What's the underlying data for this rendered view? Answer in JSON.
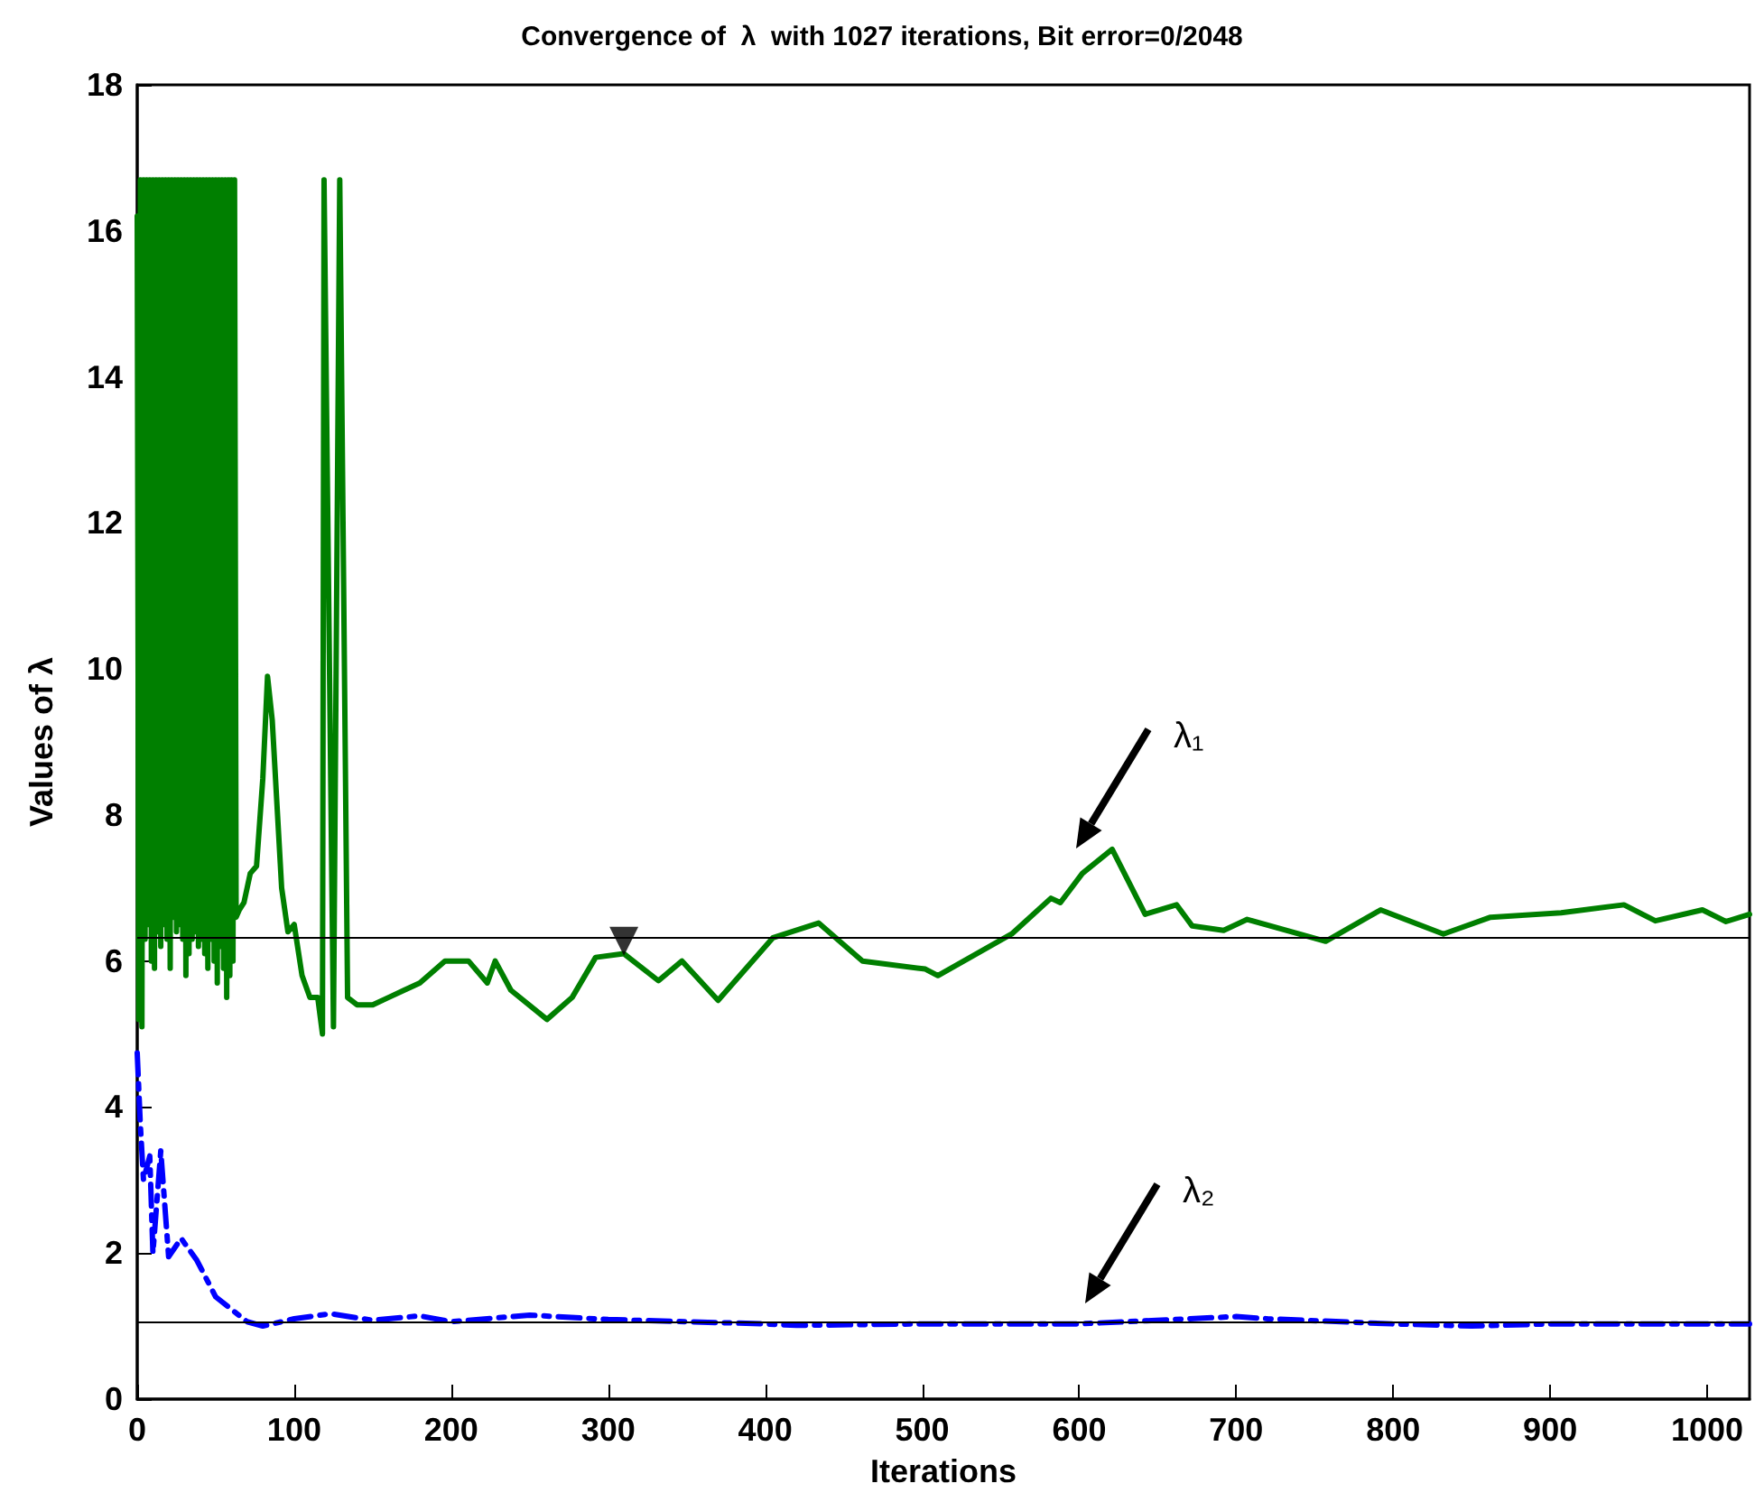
{
  "chart_data": {
    "type": "line",
    "title": "Convergence of  λ  with 1027 iterations, Bit error=0/2048",
    "xlabel": "Iterations",
    "ylabel": "Values of λ",
    "annotations": [
      "λ₁",
      "λ₂"
    ],
    "series": [
      {
        "color": "#007f00",
        "line_style": "solid",
        "marker": "none",
        "x": [
          0,
          1,
          2,
          3,
          4,
          5,
          6,
          7,
          8,
          9,
          10,
          11,
          12,
          13,
          14,
          15,
          16,
          17,
          18,
          19,
          20,
          21,
          22,
          23,
          24,
          25,
          26,
          27,
          28,
          29,
          30,
          31,
          32,
          33,
          34,
          35,
          36,
          37,
          38,
          39,
          40,
          41,
          42,
          43,
          44,
          45,
          46,
          47,
          48,
          49,
          50,
          51,
          52,
          53,
          54,
          55,
          56,
          57,
          58,
          59,
          60,
          61,
          62,
          63,
          65,
          68,
          72,
          76,
          80,
          83,
          86,
          92,
          96,
          100,
          105,
          110,
          115,
          118,
          119,
          125,
          129,
          134,
          140,
          150,
          160,
          170,
          180,
          196,
          211,
          223,
          228,
          238,
          261,
          277,
          292,
          310,
          332,
          347,
          370,
          405,
          434,
          462,
          502,
          510,
          557,
          582,
          588,
          602,
          621,
          642,
          662,
          672,
          692,
          707,
          757,
          792,
          832,
          862,
          907,
          947,
          967,
          997,
          1012,
          1027
        ],
        "values": [
          16.2,
          5.2,
          16.7,
          5.1,
          16.7,
          6.3,
          16.7,
          6.5,
          16.7,
          6.0,
          16.7,
          5.9,
          16.7,
          6.4,
          16.7,
          6.2,
          16.7,
          6.5,
          16.7,
          6.3,
          16.7,
          5.9,
          16.7,
          6.6,
          16.7,
          6.4,
          16.7,
          6.5,
          16.7,
          6.3,
          16.7,
          5.8,
          16.7,
          6.1,
          16.7,
          6.3,
          16.7,
          6.4,
          16.7,
          6.2,
          16.7,
          6.3,
          16.7,
          6.1,
          16.7,
          5.9,
          16.7,
          6.3,
          16.7,
          6.0,
          16.7,
          5.7,
          16.7,
          6.2,
          16.7,
          5.9,
          16.7,
          5.5,
          16.7,
          5.8,
          16.7,
          6.0,
          16.7,
          6.6,
          6.7,
          6.8,
          7.2,
          7.3,
          8.5,
          9.9,
          9.3,
          7.0,
          6.4,
          6.5,
          5.8,
          5.5,
          5.5,
          5.0,
          16.7,
          5.1,
          16.7,
          5.5,
          5.4,
          5.4,
          5.5,
          5.6,
          5.7,
          6.0,
          6.0,
          5.7,
          6.0,
          5.6,
          5.2,
          5.5,
          6.05,
          6.1,
          5.73,
          6.0,
          5.46,
          6.32,
          6.52,
          6.0,
          5.89,
          5.8,
          6.37,
          6.86,
          6.8,
          7.2,
          7.53,
          6.64,
          6.77,
          6.48,
          6.42,
          6.57,
          6.27,
          6.7,
          6.37,
          6.6,
          6.66,
          6.77,
          6.55,
          6.7,
          6.54,
          6.64
        ]
      },
      {
        "color": "#0000ff",
        "line_style": "dashed",
        "marker": "none",
        "x": [
          0,
          2,
          4,
          8,
          10,
          15,
          20,
          28,
          38,
          50,
          70,
          80,
          100,
          123,
          150,
          180,
          200,
          250,
          300,
          400,
          420,
          500,
          600,
          700,
          720,
          800,
          850,
          900,
          1027
        ],
        "values": [
          4.74,
          3.75,
          3.0,
          3.33,
          2.0,
          3.4,
          1.95,
          2.2,
          1.9,
          1.4,
          1.06,
          1.0,
          1.1,
          1.17,
          1.08,
          1.14,
          1.06,
          1.15,
          1.09,
          1.03,
          1.01,
          1.03,
          1.03,
          1.13,
          1.1,
          1.03,
          1.0,
          1.03,
          1.03
        ]
      },
      {
        "type": "scatter",
        "color": "#000000",
        "marker": "triangle",
        "x": [
          310
        ],
        "values": [
          6.27
        ]
      }
    ],
    "ref_lines": [
      {
        "axis": "y",
        "value": 6.32,
        "color": "#000000"
      },
      {
        "axis": "y",
        "value": 1.06,
        "color": "#000000"
      }
    ],
    "xlim": [
      0,
      1027
    ],
    "xticks": [
      0,
      100,
      200,
      300,
      400,
      500,
      600,
      700,
      800,
      900,
      1000
    ],
    "ylim": [
      0,
      18
    ],
    "yticks": [
      0,
      2,
      4,
      6,
      8,
      10,
      12,
      14,
      16,
      18
    ],
    "grid": false
  }
}
